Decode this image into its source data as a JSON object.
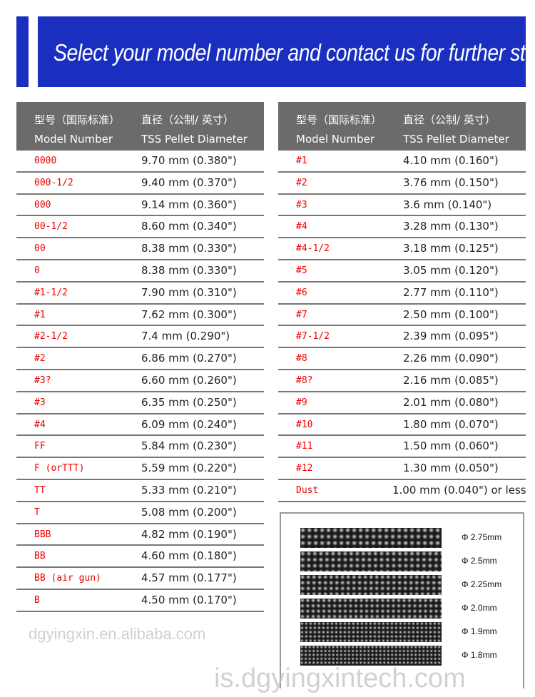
{
  "banner": {
    "title": "Select your model number and contact us for further step",
    "color": "#1a2fbf"
  },
  "headers": {
    "model_cn": "型号（国际标准）",
    "diameter_cn": "直径（公制/ 英寸）",
    "model_en": "Model Number",
    "diameter_en": "TSS Pellet Diameter"
  },
  "left_rows": [
    [
      "0000",
      "9.70 mm (0.380\")"
    ],
    [
      "000-1/2",
      "9.40 mm (0.370\")"
    ],
    [
      "000",
      "9.14 mm (0.360\")"
    ],
    [
      "00-1/2",
      "8.60 mm (0.340\")"
    ],
    [
      "00",
      "8.38 mm (0.330\")"
    ],
    [
      "0",
      "8.38 mm (0.330\")"
    ],
    [
      "#1-1/2",
      "7.90 mm (0.310\")"
    ],
    [
      "#1",
      "7.62 mm (0.300\")"
    ],
    [
      "#2-1/2",
      "7.4 mm (0.290\")"
    ],
    [
      "#2",
      "6.86 mm (0.270\")"
    ],
    [
      "#3?",
      "6.60 mm (0.260\")"
    ],
    [
      "#3",
      "6.35 mm (0.250\")"
    ],
    [
      "#4",
      "6.09 mm (0.240\")"
    ],
    [
      "FF",
      "5.84 mm (0.230\")"
    ],
    [
      "F (orTTT)",
      "5.59 mm (0.220\")"
    ],
    [
      "TT",
      "5.33 mm (0.210\")"
    ],
    [
      "T",
      "5.08 mm (0.200\")"
    ],
    [
      "BBB",
      "4.82 mm (0.190\")"
    ],
    [
      "BB",
      "4.60 mm (0.180\")"
    ],
    [
      "BB (air gun)",
      "4.57 mm (0.177\")"
    ],
    [
      "B",
      "4.50 mm (0.170\")"
    ]
  ],
  "right_rows": [
    [
      "#1",
      "4.10 mm (0.160\")"
    ],
    [
      "#2",
      "3.76 mm (0.150\")"
    ],
    [
      "#3",
      "3.6 mm (0.140\")"
    ],
    [
      "#4",
      "3.28 mm (0.130\")"
    ],
    [
      "#4-1/2",
      "3.18 mm (0.125\")"
    ],
    [
      "#5",
      "3.05 mm (0.120\")"
    ],
    [
      "#6",
      "2.77 mm (0.110\")"
    ],
    [
      "#7",
      "2.50 mm (0.100\")"
    ],
    [
      "#7-1/2",
      "2.39 mm (0.095\")"
    ],
    [
      "#8",
      "2.26 mm (0.090\")"
    ],
    [
      "#8?",
      "2.16 mm (0.085\")"
    ],
    [
      "#9",
      "2.01 mm (0.080\")"
    ],
    [
      "#10",
      "1.80 mm (0.070\")"
    ],
    [
      "#11",
      "1.50 mm (0.060\")"
    ],
    [
      "#12",
      "1.30 mm (0.050\")"
    ],
    [
      "Dust",
      "1.00 mm (0.040\") or less"
    ]
  ],
  "photo_labels": [
    "Φ 2.75mm",
    "Φ 2.5mm",
    "Φ 2.25mm",
    "Φ 2.0mm",
    "Φ 1.9mm",
    "Φ 1.8mm"
  ],
  "watermarks": [
    "dgyingxin.en.alibaba.com",
    "is.dgyingxintech.com"
  ]
}
